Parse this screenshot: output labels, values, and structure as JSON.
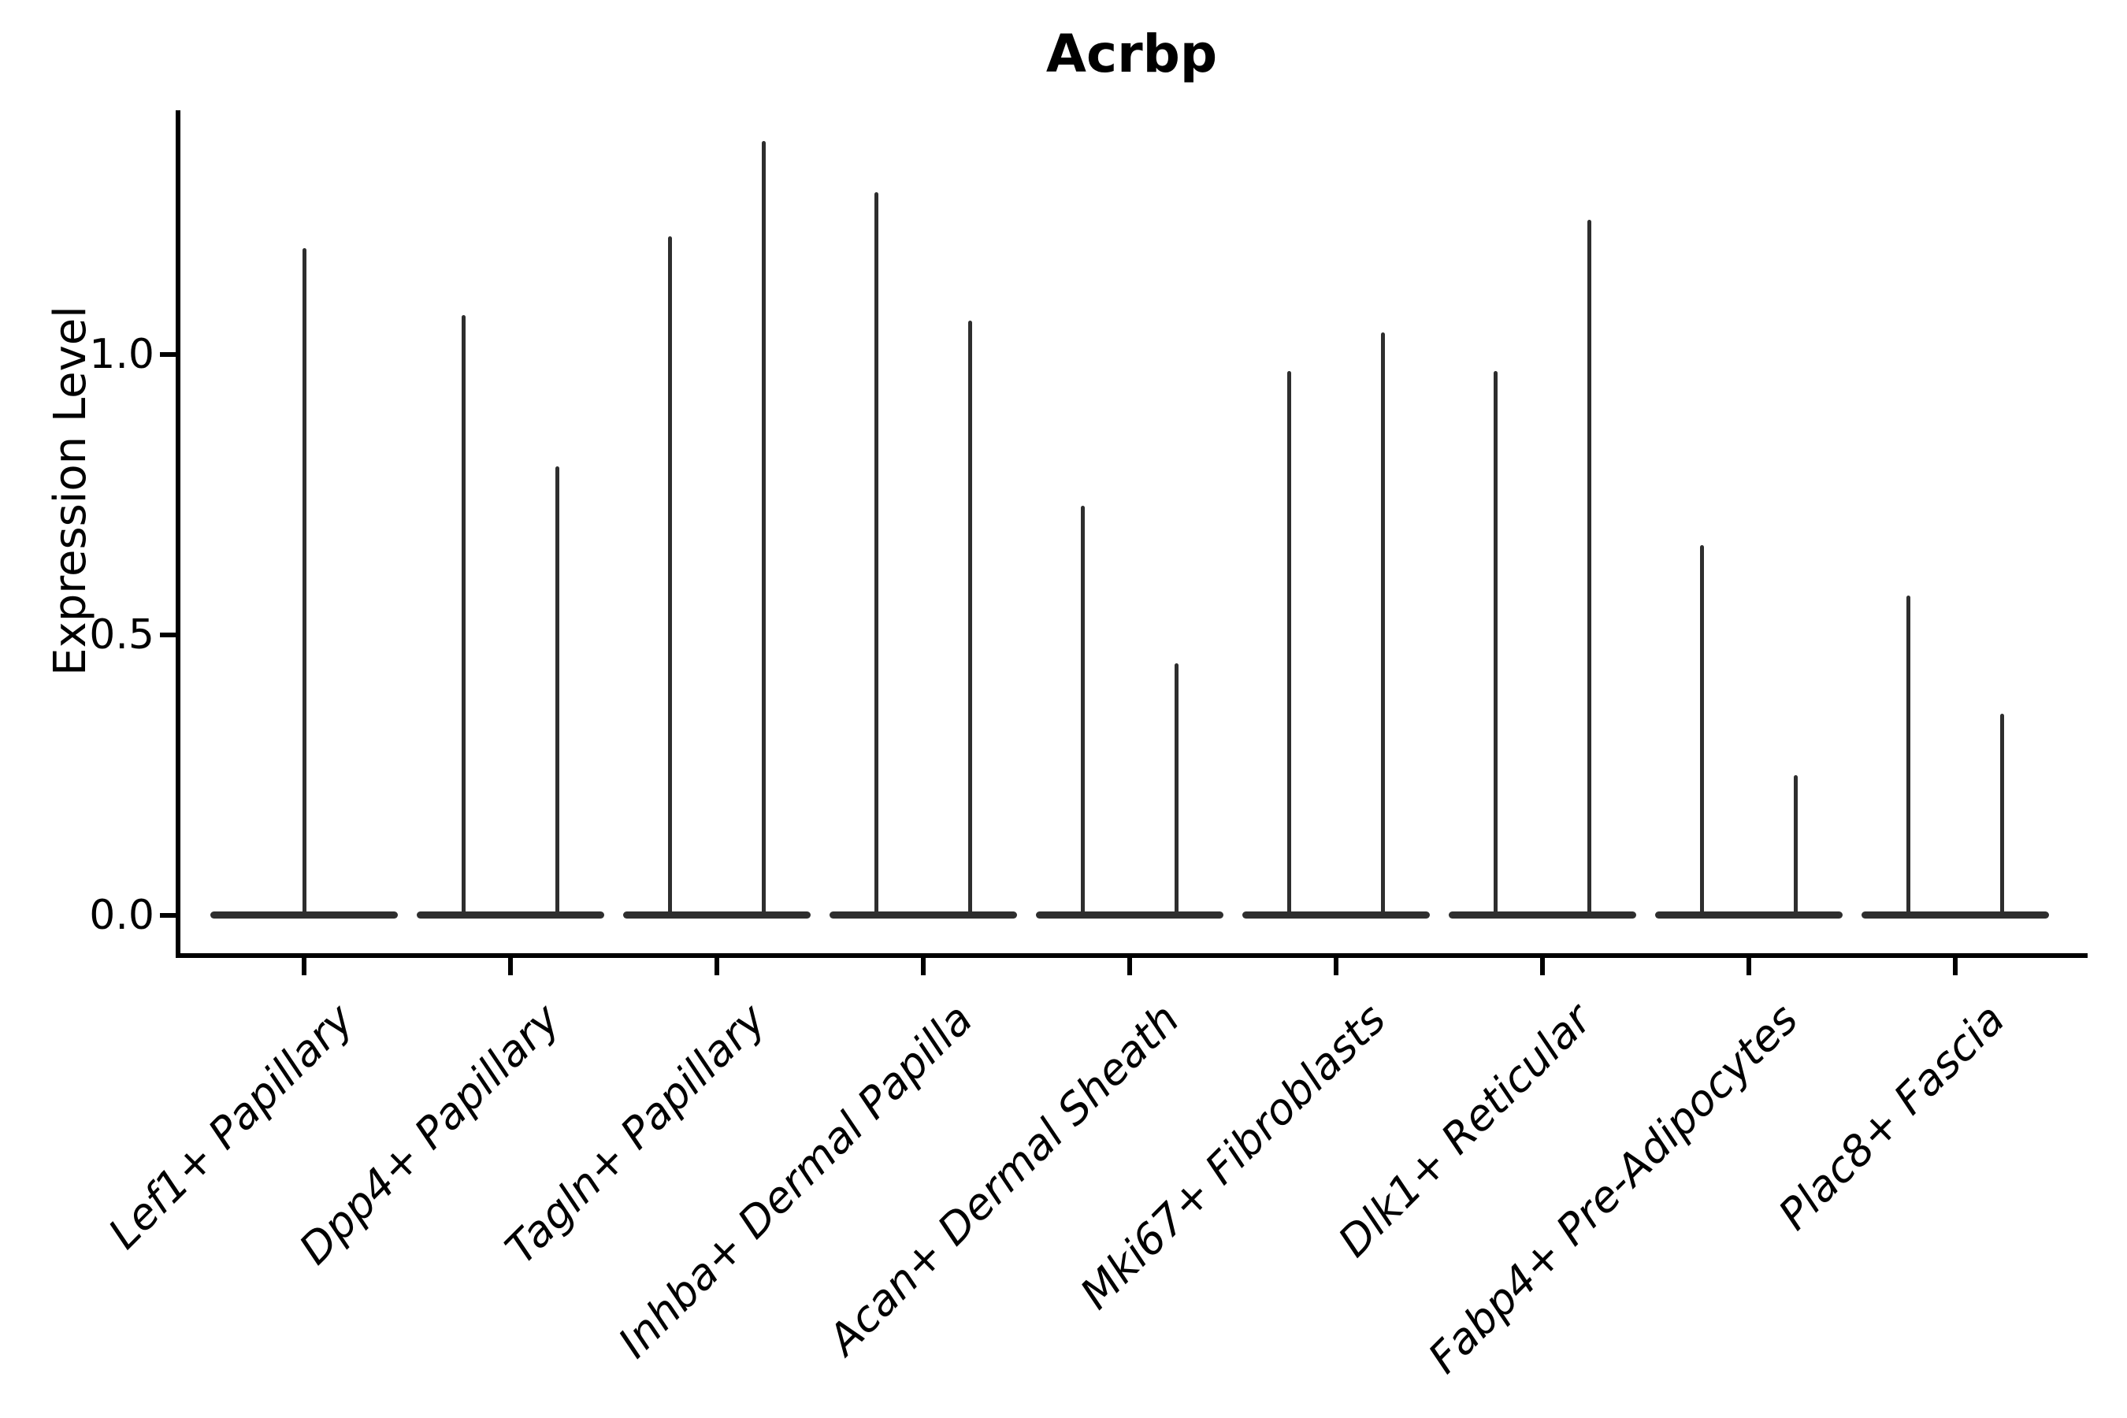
{
  "title": "Acrbp",
  "axes": {
    "ylabel": "Expression Level",
    "xlabel": "",
    "yticks": [
      {
        "label": "0.0",
        "value": 0.0
      },
      {
        "label": "0.5",
        "value": 0.5
      },
      {
        "label": "1.0",
        "value": 1.0
      }
    ]
  },
  "colors": {
    "violin": "#2e2e2e",
    "axis": "#000000",
    "text": "#000000",
    "background": "#ffffff"
  },
  "chart_data": {
    "type": "violin",
    "title": "Acrbp",
    "xlabel": "",
    "ylabel": "Expression Level",
    "grid": false,
    "legend": null,
    "ylim": [
      -0.07,
      1.44
    ],
    "yticks": [
      0.0,
      0.5,
      1.0
    ],
    "baseline_value": 0.0,
    "shape_note": "zero-inflated expression violins: wide flat body at 0 with thin spikes reaching each group maximum",
    "categories": [
      "Lef1+ Papillary",
      "Dpp4+ Papillary",
      "Tagln+ Papillary",
      "Inhba+ Dermal Papilla",
      "Acan+ Dermal Sheath",
      "Mki67+ Fibroblasts",
      "Dlk1+ Reticular",
      "Fabp4+ Pre-Adipocytes",
      "Plac8+ Fascia"
    ],
    "violins": [
      {
        "category": "Lef1+ Papillary",
        "spike_maxima": [
          1.19
        ]
      },
      {
        "category": "Dpp4+ Papillary",
        "spike_maxima": [
          1.07,
          0.8
        ]
      },
      {
        "category": "Tagln+ Papillary",
        "spike_maxima": [
          1.21,
          1.38
        ]
      },
      {
        "category": "Inhba+ Dermal Papilla",
        "spike_maxima": [
          1.29,
          1.06
        ]
      },
      {
        "category": "Acan+ Dermal Sheath",
        "spike_maxima": [
          0.73,
          0.45
        ]
      },
      {
        "category": "Mki67+ Fibroblasts",
        "spike_maxima": [
          0.97,
          1.04
        ]
      },
      {
        "category": "Dlk1+ Reticular",
        "spike_maxima": [
          0.97,
          1.24
        ]
      },
      {
        "category": "Fabp4+ Pre-Adipocytes",
        "spike_maxima": [
          0.66,
          0.25
        ]
      },
      {
        "category": "Plac8+ Fascia",
        "spike_maxima": [
          0.57,
          0.36
        ]
      }
    ]
  }
}
